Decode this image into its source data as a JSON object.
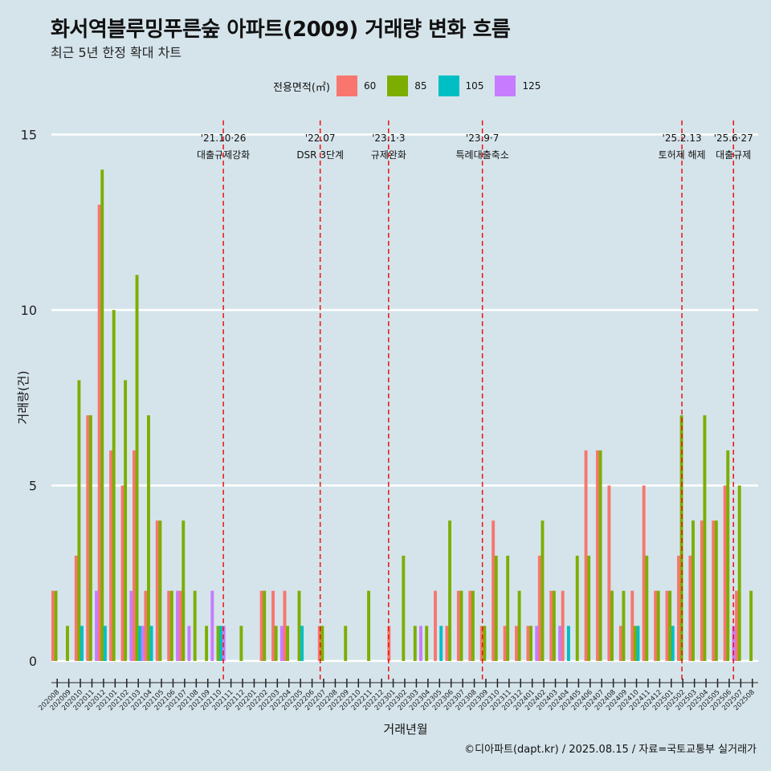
{
  "title": "화서역블루밍푸른숲 아파트(2009) 거래량 변화 흐름",
  "subtitle": "최근 5년 한정 확대 차트",
  "caption": "©디아파트(dapt.kr) / 2025.08.15 / 자료=국토교통부 실거래가",
  "legend": {
    "title": "전용면적(㎡)",
    "items": [
      {
        "label": "60",
        "color": "#f8766d"
      },
      {
        "label": "85",
        "color": "#7cae00"
      },
      {
        "label": "105",
        "color": "#00bfc4"
      },
      {
        "label": "125",
        "color": "#c77cff"
      }
    ]
  },
  "chart_data": {
    "type": "bar",
    "xlabel": "거래년월",
    "ylabel": "거래량(건)",
    "ylim": [
      0,
      15
    ],
    "yticks": [
      0,
      5,
      10,
      15
    ],
    "grid": true,
    "legend_position": "top",
    "categories": [
      "202008",
      "202009",
      "202010",
      "202011",
      "202012",
      "202101",
      "202102",
      "202103",
      "202104",
      "202105",
      "202106",
      "202107",
      "202108",
      "202109",
      "202110",
      "202111",
      "202112",
      "202201",
      "202202",
      "202203",
      "202204",
      "202205",
      "202206",
      "202207",
      "202208",
      "202209",
      "202210",
      "202211",
      "202212",
      "202301",
      "202302",
      "202303",
      "202304",
      "202305",
      "202306",
      "202307",
      "202308",
      "202309",
      "202310",
      "202311",
      "202312",
      "202401",
      "202402",
      "202403",
      "202404",
      "202405",
      "202406",
      "202407",
      "202408",
      "202409",
      "202410",
      "202411",
      "202412",
      "202501",
      "202502",
      "202503",
      "202504",
      "202505",
      "202506",
      "202507",
      "202508"
    ],
    "series": [
      {
        "name": "60",
        "color": "#f8766d",
        "values": [
          2,
          0,
          3,
          7,
          13,
          6,
          5,
          6,
          2,
          4,
          2,
          2,
          0,
          0,
          0,
          0,
          0,
          0,
          2,
          2,
          2,
          0,
          0,
          1,
          0,
          0,
          0,
          0,
          0,
          1,
          0,
          0,
          0,
          2,
          1,
          2,
          2,
          1,
          4,
          1,
          1,
          1,
          3,
          2,
          2,
          0,
          6,
          6,
          5,
          1,
          2,
          5,
          2,
          2,
          3,
          3,
          4,
          4,
          5,
          2,
          0
        ]
      },
      {
        "name": "85",
        "color": "#7cae00",
        "values": [
          2,
          1,
          8,
          7,
          14,
          10,
          8,
          11,
          7,
          4,
          2,
          4,
          2,
          1,
          1,
          0,
          1,
          0,
          2,
          1,
          1,
          2,
          0,
          1,
          0,
          1,
          0,
          2,
          0,
          0,
          3,
          1,
          1,
          0,
          4,
          2,
          2,
          1,
          3,
          3,
          2,
          1,
          4,
          2,
          0,
          3,
          3,
          6,
          2,
          2,
          1,
          3,
          2,
          2,
          7,
          4,
          7,
          4,
          6,
          5,
          2
        ]
      },
      {
        "name": "105",
        "color": "#00bfc4",
        "values": [
          0,
          0,
          1,
          0,
          1,
          0,
          0,
          1,
          1,
          0,
          0,
          0,
          0,
          0,
          1,
          0,
          0,
          0,
          0,
          0,
          0,
          1,
          0,
          0,
          0,
          0,
          0,
          0,
          0,
          0,
          0,
          0,
          0,
          1,
          0,
          0,
          0,
          0,
          0,
          0,
          0,
          0,
          0,
          0,
          1,
          0,
          0,
          0,
          0,
          0,
          1,
          0,
          0,
          1,
          0,
          0,
          0,
          0,
          0,
          0,
          0
        ]
      },
      {
        "name": "125",
        "color": "#c77cff",
        "values": [
          0,
          0,
          0,
          2,
          0,
          0,
          2,
          1,
          0,
          0,
          2,
          1,
          0,
          2,
          1,
          0,
          0,
          0,
          0,
          1,
          0,
          0,
          0,
          0,
          0,
          0,
          0,
          0,
          0,
          0,
          0,
          1,
          0,
          0,
          0,
          0,
          0,
          0,
          0,
          0,
          0,
          1,
          0,
          1,
          0,
          0,
          0,
          0,
          0,
          0,
          0,
          0,
          0,
          0,
          0,
          0,
          0,
          0,
          1,
          0,
          0
        ]
      }
    ],
    "annotations": [
      {
        "after": "202110",
        "frac": 0.84,
        "date": "'21.10·26",
        "label": "대출규제강화"
      },
      {
        "after": "202207",
        "frac": 0.2,
        "date": "'22.07",
        "label": "DSR 3단계"
      },
      {
        "after": "202301",
        "frac": 0.1,
        "date": "'23.1·3",
        "label": "규제완화"
      },
      {
        "after": "202309",
        "frac": 0.2,
        "date": "'23.9·7",
        "label": "특례대출축소"
      },
      {
        "after": "202502",
        "frac": 0.42,
        "date": "'25.2.13",
        "label": "토허제 해제"
      },
      {
        "after": "202506",
        "frac": 0.87,
        "date": "'25.6·27",
        "label": "대출규제"
      }
    ]
  }
}
